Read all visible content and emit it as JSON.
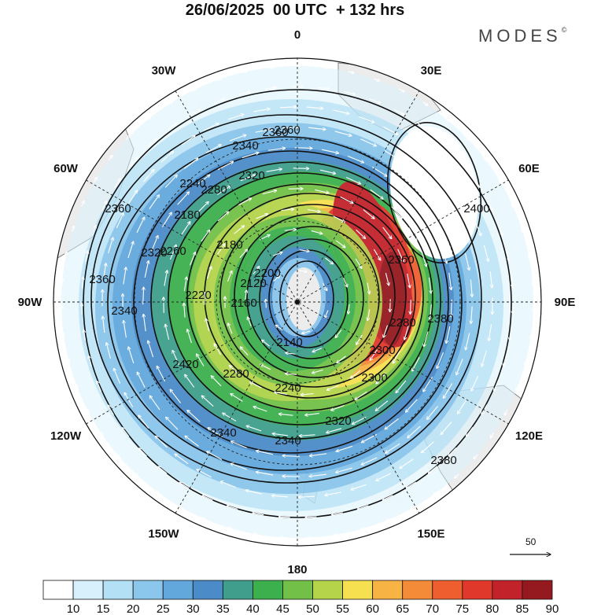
{
  "title": "26/06/2025  00 UTC  + 132 hrs",
  "brand": "MODES",
  "brand_mark": "©",
  "reference_vector": {
    "value": "50"
  },
  "longitude_labels": [
    {
      "text": "0",
      "lon": 0
    },
    {
      "text": "30E",
      "lon": 30
    },
    {
      "text": "60E",
      "lon": 60
    },
    {
      "text": "90E",
      "lon": 90
    },
    {
      "text": "120E",
      "lon": 120
    },
    {
      "text": "150E",
      "lon": 150
    },
    {
      "text": "180",
      "lon": 180
    },
    {
      "text": "150W",
      "lon": -150
    },
    {
      "text": "120W",
      "lon": -120
    },
    {
      "text": "90W",
      "lon": -90
    },
    {
      "text": "60W",
      "lon": -60
    },
    {
      "text": "30W",
      "lon": -30
    }
  ],
  "colorbar": {
    "labels": [
      "10",
      "15",
      "20",
      "25",
      "30",
      "35",
      "40",
      "45",
      "50",
      "55",
      "60",
      "65",
      "70",
      "75",
      "80",
      "85",
      "90"
    ],
    "colors": [
      "#ffffff",
      "#d7f0fc",
      "#b4e0f6",
      "#8bc6ec",
      "#63a8dc",
      "#4b8cc8",
      "#3f9f8c",
      "#3db04e",
      "#72c047",
      "#b5d44a",
      "#f6e050",
      "#f7b344",
      "#f48b38",
      "#ee5e2f",
      "#e0382b",
      "#c2232a",
      "#941a1f"
    ]
  },
  "contour_labels": [
    "2360",
    "2340",
    "2360",
    "2360",
    "2320",
    "2280",
    "2240",
    "2180",
    "2180",
    "2120",
    "2160",
    "2140",
    "2200",
    "2220",
    "2260",
    "2240",
    "2280",
    "2300",
    "2320",
    "2340",
    "2340",
    "2380",
    "2400",
    "2380",
    "2420",
    "2360",
    "2360",
    "2280",
    "2300",
    "2320",
    "2340"
  ]
}
